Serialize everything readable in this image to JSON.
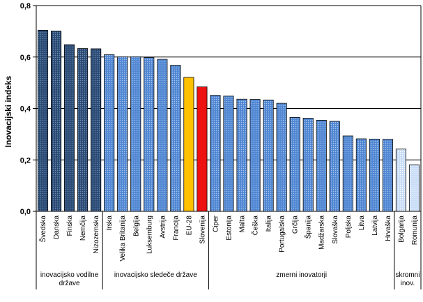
{
  "chart_data": {
    "type": "bar",
    "ylabel": "Inovacijski indeks",
    "ylim": [
      0,
      0.8
    ],
    "ytick_step": 0.2,
    "ytick_labels": [
      "0,0",
      "0,2",
      "0,4",
      "0,6",
      "0,8"
    ],
    "grid": true,
    "categories": [
      "Švedska",
      "Danska",
      "Finska",
      "Nemčija",
      "Nizozemska",
      "Irska",
      "Velika Britanija",
      "Belgija",
      "Luksemburg",
      "Avstrija",
      "Francija",
      "EU-28",
      "Slovenija",
      "Ciper",
      "Estonija",
      "Malta",
      "Češka",
      "Italija",
      "Portugalska",
      "Grčija",
      "Španija",
      "Madžarska",
      "Slovaška",
      "Poljska",
      "Litva",
      "Latvija",
      "Hrvaška",
      "Bolgarija",
      "Romunija"
    ],
    "values": [
      0.704,
      0.701,
      0.648,
      0.633,
      0.632,
      0.609,
      0.601,
      0.601,
      0.598,
      0.591,
      0.568,
      0.521,
      0.484,
      0.451,
      0.448,
      0.436,
      0.435,
      0.433,
      0.42,
      0.365,
      0.362,
      0.354,
      0.35,
      0.293,
      0.282,
      0.281,
      0.28,
      0.242,
      0.181
    ],
    "groups": [
      {
        "label": "inovacijsko vodilne države",
        "lines": [
          "inovacijsko vodilne",
          "države"
        ],
        "start": 0,
        "end": 4,
        "color": "#2a4a73"
      },
      {
        "label": "inovacijsko sledeče države",
        "lines": [
          "inovacijsko sledeče države"
        ],
        "start": 5,
        "end": 12,
        "color": "#4f86d2"
      },
      {
        "label": "zmerni inovatorji",
        "lines": [
          "zmerni inovatorji"
        ],
        "start": 13,
        "end": 26,
        "color": "#4f86d2"
      },
      {
        "label": "skromni inov.",
        "lines": [
          "skromni",
          "inov."
        ],
        "start": 27,
        "end": 28,
        "color": "#c7dcf7"
      }
    ],
    "highlight_colors": {
      "EU-28": "#ffc000",
      "Slovenija": "#ee1111"
    }
  }
}
